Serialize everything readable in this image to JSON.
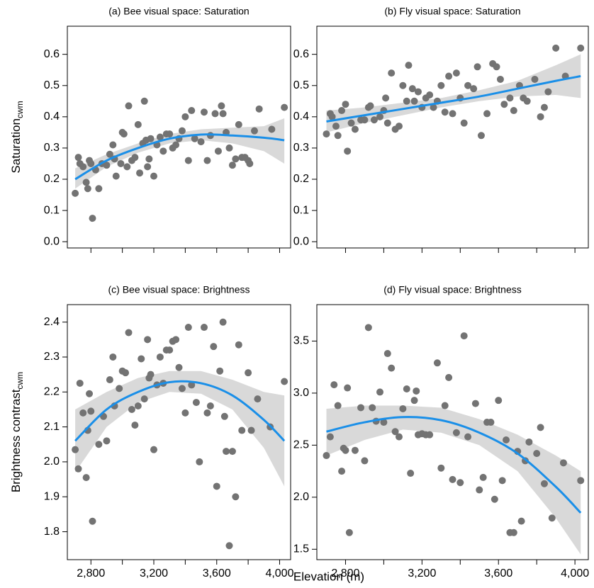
{
  "xlabel": "Elevation (m)",
  "chart_data": [
    {
      "type": "scatter",
      "title": "(a) Bee visual space: Saturation",
      "ylabel": "Saturation",
      "ylabel_sub": "cwm",
      "xlim": [
        2650,
        4070
      ],
      "ylim": [
        -0.02,
        0.69
      ],
      "xticks": [
        2800,
        3200,
        3600,
        4000
      ],
      "show_xtick_labels": false,
      "xminor_ticks": [
        3000,
        3400,
        3800
      ],
      "yticks": [
        {
          "value": 0,
          "label": "0.0"
        },
        0.1,
        0.2,
        0.3,
        0.4,
        0.5,
        0.6
      ],
      "point_color": "#737373",
      "fit_color": "#1a8fe8",
      "band_color": "#d9d9d9",
      "x": [
        2700,
        2720,
        2730,
        2750,
        2770,
        2780,
        2790,
        2800,
        2810,
        2830,
        2850,
        2870,
        2900,
        2920,
        2940,
        2950,
        2960,
        2990,
        3000,
        3010,
        3030,
        3040,
        3060,
        3080,
        3100,
        3110,
        3130,
        3140,
        3150,
        3160,
        3170,
        3180,
        3200,
        3220,
        3240,
        3260,
        3280,
        3300,
        3320,
        3340,
        3360,
        3380,
        3400,
        3420,
        3440,
        3460,
        3500,
        3520,
        3540,
        3560,
        3590,
        3610,
        3630,
        3640,
        3660,
        3680,
        3700,
        3720,
        3740,
        3760,
        3780,
        3800,
        3810,
        3840,
        3870,
        3950,
        4030
      ],
      "values": [
        0.155,
        0.27,
        0.25,
        0.24,
        0.19,
        0.17,
        0.26,
        0.25,
        0.075,
        0.23,
        0.17,
        0.25,
        0.245,
        0.28,
        0.31,
        0.265,
        0.21,
        0.25,
        0.35,
        0.345,
        0.24,
        0.435,
        0.26,
        0.27,
        0.375,
        0.22,
        0.315,
        0.45,
        0.325,
        0.24,
        0.265,
        0.33,
        0.21,
        0.31,
        0.335,
        0.29,
        0.345,
        0.345,
        0.3,
        0.31,
        0.33,
        0.355,
        0.4,
        0.26,
        0.42,
        0.33,
        0.32,
        0.415,
        0.26,
        0.34,
        0.41,
        0.29,
        0.435,
        0.41,
        0.35,
        0.3,
        0.245,
        0.265,
        0.375,
        0.27,
        0.27,
        0.26,
        0.25,
        0.355,
        0.425,
        0.36,
        0.43
      ],
      "fit": {
        "x": [
          2700,
          2900,
          3100,
          3300,
          3500,
          3700,
          3900,
          4030
        ],
        "values": [
          0.2,
          0.26,
          0.3,
          0.33,
          0.343,
          0.34,
          0.333,
          0.325
        ],
        "lower": [
          0.17,
          0.24,
          0.285,
          0.315,
          0.325,
          0.315,
          0.29,
          0.25
        ],
        "upper": [
          0.235,
          0.28,
          0.315,
          0.345,
          0.36,
          0.365,
          0.37,
          0.395
        ]
      }
    },
    {
      "type": "scatter",
      "title": "(b) Fly visual space: Saturation",
      "xlim": [
        2650,
        4070
      ],
      "ylim": [
        -0.02,
        0.69
      ],
      "xticks": [
        2800,
        3200,
        3600,
        4000
      ],
      "show_xtick_labels": false,
      "xminor_ticks": [
        3000,
        3400,
        3800
      ],
      "yticks": [
        {
          "value": 0,
          "label": "0.0"
        },
        0.1,
        0.2,
        0.3,
        0.4,
        0.5,
        0.6
      ],
      "point_color": "#737373",
      "fit_color": "#1a8fe8",
      "band_color": "#d9d9d9",
      "x": [
        2700,
        2720,
        2730,
        2750,
        2760,
        2780,
        2800,
        2810,
        2830,
        2850,
        2880,
        2900,
        2920,
        2930,
        2950,
        2980,
        3000,
        3010,
        3020,
        3040,
        3060,
        3080,
        3100,
        3120,
        3130,
        3150,
        3160,
        3180,
        3200,
        3220,
        3240,
        3260,
        3280,
        3300,
        3320,
        3340,
        3360,
        3380,
        3400,
        3420,
        3440,
        3470,
        3490,
        3510,
        3540,
        3570,
        3590,
        3610,
        3630,
        3660,
        3680,
        3710,
        3730,
        3750,
        3790,
        3820,
        3840,
        3860,
        3900,
        3950,
        4030
      ],
      "values": [
        0.345,
        0.41,
        0.4,
        0.37,
        0.34,
        0.42,
        0.44,
        0.29,
        0.38,
        0.36,
        0.39,
        0.39,
        0.43,
        0.435,
        0.39,
        0.4,
        0.42,
        0.46,
        0.38,
        0.54,
        0.36,
        0.37,
        0.5,
        0.45,
        0.565,
        0.49,
        0.45,
        0.48,
        0.43,
        0.46,
        0.47,
        0.43,
        0.45,
        0.5,
        0.415,
        0.53,
        0.41,
        0.54,
        0.46,
        0.38,
        0.5,
        0.49,
        0.56,
        0.34,
        0.41,
        0.57,
        0.56,
        0.52,
        0.44,
        0.46,
        0.42,
        0.5,
        0.46,
        0.45,
        0.52,
        0.4,
        0.43,
        0.48,
        0.62,
        0.53,
        0.62
      ],
      "fit": {
        "x": [
          2700,
          2900,
          3100,
          3300,
          3500,
          3700,
          3900,
          4030
        ],
        "values": [
          0.385,
          0.405,
          0.425,
          0.445,
          0.465,
          0.49,
          0.515,
          0.53
        ],
        "lower": [
          0.35,
          0.38,
          0.405,
          0.43,
          0.45,
          0.465,
          0.47,
          0.46
        ],
        "upper": [
          0.42,
          0.43,
          0.445,
          0.46,
          0.485,
          0.515,
          0.565,
          0.6
        ]
      }
    },
    {
      "type": "scatter",
      "title": "(c) Bee visual space: Brightness",
      "ylabel": "Brightness contrast",
      "ylabel_sub": "cwm",
      "xlim": [
        2650,
        4070
      ],
      "ylim": [
        1.72,
        2.45
      ],
      "xticks": [
        {
          "value": 2800,
          "label": "2,800"
        },
        {
          "value": 3200,
          "label": "3,200"
        },
        {
          "value": 3600,
          "label": "3,600"
        },
        {
          "value": 4000,
          "label": "4,000"
        }
      ],
      "show_xtick_labels": true,
      "xminor_ticks": [
        3000,
        3400,
        3800
      ],
      "yticks": [
        1.8,
        1.9,
        {
          "value": 2,
          "label": "2.0"
        },
        2.1,
        2.2,
        2.3,
        2.4
      ],
      "point_color": "#737373",
      "fit_color": "#1a8fe8",
      "band_color": "#d9d9d9",
      "x": [
        2700,
        2720,
        2730,
        2750,
        2770,
        2780,
        2790,
        2800,
        2810,
        2850,
        2880,
        2900,
        2920,
        2940,
        2950,
        2980,
        3000,
        3020,
        3040,
        3060,
        3080,
        3100,
        3120,
        3140,
        3160,
        3170,
        3180,
        3200,
        3220,
        3240,
        3260,
        3280,
        3300,
        3320,
        3340,
        3360,
        3380,
        3400,
        3420,
        3440,
        3470,
        3490,
        3520,
        3540,
        3560,
        3580,
        3600,
        3620,
        3640,
        3650,
        3660,
        3680,
        3700,
        3720,
        3740,
        3760,
        3800,
        3820,
        3860,
        3940,
        4030
      ],
      "values": [
        2.035,
        1.98,
        2.225,
        2.14,
        1.955,
        2.09,
        2.195,
        2.145,
        1.83,
        2.05,
        2.13,
        2.06,
        2.235,
        2.3,
        2.16,
        2.21,
        2.26,
        2.255,
        2.37,
        2.15,
        2.105,
        2.16,
        2.295,
        2.18,
        2.35,
        2.24,
        2.25,
        2.035,
        2.22,
        2.3,
        2.225,
        2.32,
        2.32,
        2.345,
        2.35,
        2.27,
        2.21,
        2.14,
        2.385,
        2.22,
        2.17,
        2.0,
        2.385,
        2.14,
        2.16,
        2.33,
        1.93,
        2.26,
        2.4,
        2.13,
        2.03,
        1.76,
        2.03,
        1.9,
        2.335,
        2.09,
        2.255,
        2.09,
        2.18,
        2.1,
        2.23
      ],
      "fit": {
        "x": [
          2700,
          2900,
          3100,
          3300,
          3500,
          3700,
          3900,
          4030
        ],
        "values": [
          2.06,
          2.15,
          2.2,
          2.228,
          2.225,
          2.19,
          2.12,
          2.06
        ],
        "lower": [
          1.97,
          2.1,
          2.17,
          2.2,
          2.195,
          2.15,
          2.04,
          1.93
        ],
        "upper": [
          2.15,
          2.2,
          2.24,
          2.26,
          2.26,
          2.235,
          2.2,
          2.19
        ]
      }
    },
    {
      "type": "scatter",
      "title": "(d) Fly visual space: Brightness",
      "xlim": [
        2650,
        4070
      ],
      "ylim": [
        1.4,
        3.85
      ],
      "xticks": [
        {
          "value": 2800,
          "label": "2,800"
        },
        {
          "value": 3200,
          "label": "3,200"
        },
        {
          "value": 3600,
          "label": "3,600"
        },
        {
          "value": 4000,
          "label": "4,000"
        }
      ],
      "show_xtick_labels": true,
      "xminor_ticks": [
        3000,
        3400,
        3800
      ],
      "yticks": [
        1.5,
        {
          "value": 2,
          "label": "2.0"
        },
        2.5,
        {
          "value": 3,
          "label": "3.0"
        },
        3.5
      ],
      "point_color": "#737373",
      "fit_color": "#1a8fe8",
      "band_color": "#d9d9d9",
      "x": [
        2700,
        2720,
        2740,
        2760,
        2780,
        2790,
        2800,
        2810,
        2820,
        2850,
        2880,
        2900,
        2920,
        2940,
        2960,
        2980,
        3000,
        3020,
        3040,
        3060,
        3080,
        3100,
        3120,
        3140,
        3160,
        3170,
        3180,
        3200,
        3220,
        3240,
        3280,
        3300,
        3320,
        3340,
        3360,
        3380,
        3400,
        3420,
        3440,
        3480,
        3500,
        3520,
        3540,
        3560,
        3580,
        3600,
        3620,
        3640,
        3660,
        3680,
        3700,
        3720,
        3740,
        3760,
        3800,
        3820,
        3840,
        3880,
        3940,
        4030
      ],
      "values": [
        2.4,
        2.58,
        3.08,
        2.88,
        2.25,
        2.47,
        2.45,
        3.05,
        1.66,
        2.45,
        2.86,
        2.35,
        3.63,
        2.86,
        2.73,
        3.01,
        2.72,
        3.38,
        3.24,
        2.63,
        2.58,
        2.85,
        3.04,
        2.23,
        2.93,
        3.02,
        2.6,
        2.61,
        2.6,
        2.6,
        3.29,
        2.28,
        2.88,
        3.15,
        2.17,
        2.62,
        2.14,
        3.55,
        2.58,
        2.9,
        2.07,
        2.19,
        2.72,
        2.72,
        1.98,
        2.93,
        2.16,
        2.55,
        1.66,
        1.66,
        2.44,
        1.77,
        2.35,
        2.53,
        2.42,
        2.67,
        2.13,
        1.8,
        2.33,
        2.16
      ],
      "fit": {
        "x": [
          2700,
          2900,
          3100,
          3300,
          3500,
          3700,
          3900,
          4030
        ],
        "values": [
          2.63,
          2.72,
          2.77,
          2.74,
          2.62,
          2.42,
          2.1,
          1.85
        ],
        "lower": [
          2.4,
          2.55,
          2.65,
          2.62,
          2.5,
          2.25,
          1.8,
          1.45
        ],
        "upper": [
          2.85,
          2.88,
          2.88,
          2.86,
          2.75,
          2.6,
          2.4,
          2.25
        ]
      }
    }
  ]
}
